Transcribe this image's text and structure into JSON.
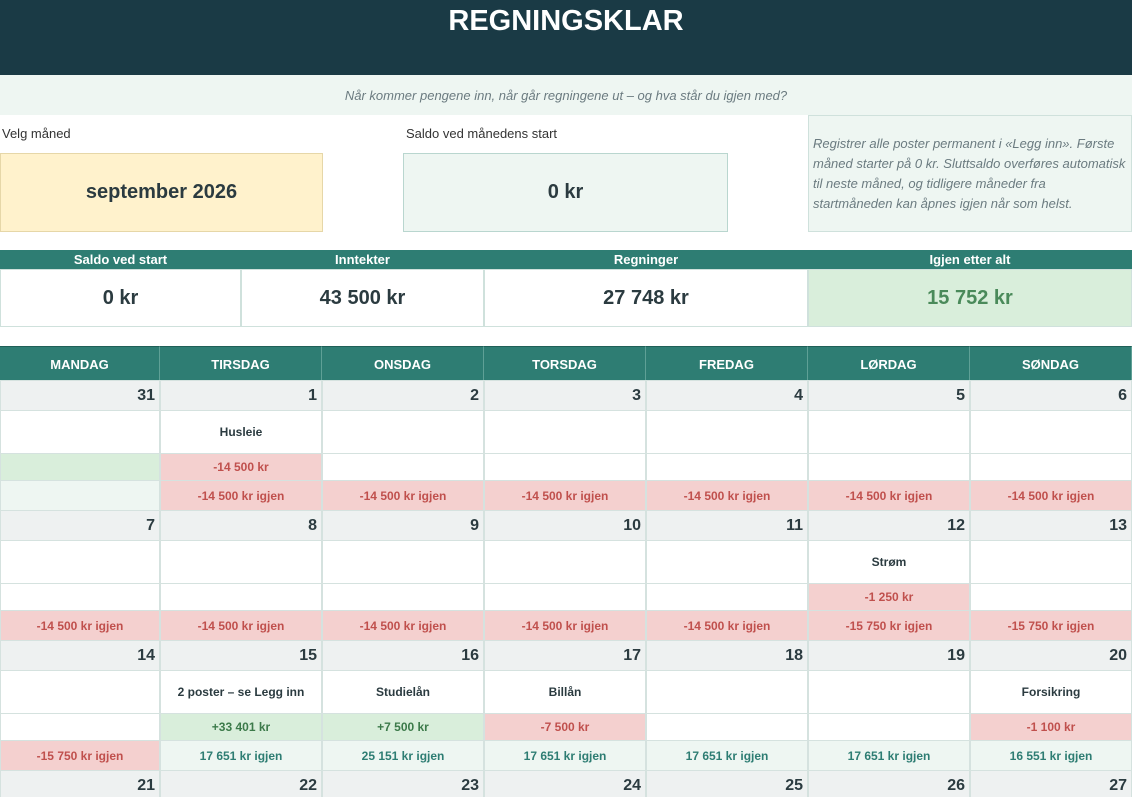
{
  "header": {
    "title": "REGNINGSKLAR",
    "subtitle": "Når kommer pengene inn, når går regningene ut – og hva står du igjen med?"
  },
  "controls": {
    "month_label": "Velg måned",
    "month_value": "september 2026",
    "start_label": "Saldo ved månedens start",
    "start_value": "0 kr",
    "info": "Registrer alle poster permanent i «Legg inn». Første måned starter på 0 kr. Sluttsaldo overføres automatisk til neste måned, og tidligere måneder fra startmåneden kan åpnes igjen når som helst."
  },
  "summary": [
    {
      "label": "Saldo ved start",
      "value": "0 kr"
    },
    {
      "label": "Inntekter",
      "value": "43 500 kr"
    },
    {
      "label": "Regninger",
      "value": "27 748 kr"
    },
    {
      "label": "Igjen etter alt",
      "value": "15 752 kr"
    }
  ],
  "calendar": {
    "weekdays": [
      "MANDAG",
      "TIRSDAG",
      "ONSDAG",
      "TORSDAG",
      "FREDAG",
      "LØRDAG",
      "SØNDAG"
    ],
    "weeks": [
      {
        "dates": [
          31,
          1,
          2,
          3,
          4,
          5,
          6
        ],
        "items": [
          null,
          "Husleie",
          null,
          null,
          null,
          null,
          null
        ],
        "amounts": [
          null,
          "-14 500 kr",
          null,
          null,
          null,
          null,
          null
        ],
        "balances": [
          null,
          "-14 500 kr igjen",
          "-14 500 kr igjen",
          "-14 500 kr igjen",
          "-14 500 kr igjen",
          "-14 500 kr igjen",
          "-14 500 kr igjen"
        ]
      },
      {
        "dates": [
          7,
          8,
          9,
          10,
          11,
          12,
          13
        ],
        "items": [
          null,
          null,
          null,
          null,
          null,
          "Strøm",
          null
        ],
        "amounts": [
          null,
          null,
          null,
          null,
          null,
          "-1 250 kr",
          null
        ],
        "balances": [
          "-14 500 kr igjen",
          "-14 500 kr igjen",
          "-14 500 kr igjen",
          "-14 500 kr igjen",
          "-14 500 kr igjen",
          "-15 750 kr igjen",
          "-15 750 kr igjen"
        ]
      },
      {
        "dates": [
          14,
          15,
          16,
          17,
          18,
          19,
          20
        ],
        "items": [
          null,
          "2 poster – se Legg inn",
          "Studielån",
          "Billån",
          null,
          null,
          "Forsikring"
        ],
        "amounts": [
          null,
          "+33 401 kr",
          "+7 500 kr",
          "-7 500 kr",
          null,
          null,
          "-1 100 kr"
        ],
        "balances": [
          "-15 750 kr igjen",
          "17 651 kr igjen",
          "25 151 kr igjen",
          "17 651 kr igjen",
          "17 651 kr igjen",
          "17 651 kr igjen",
          "16 551 kr igjen"
        ]
      },
      {
        "dates": [
          21,
          22,
          23,
          24,
          25,
          26,
          27
        ]
      }
    ]
  }
}
